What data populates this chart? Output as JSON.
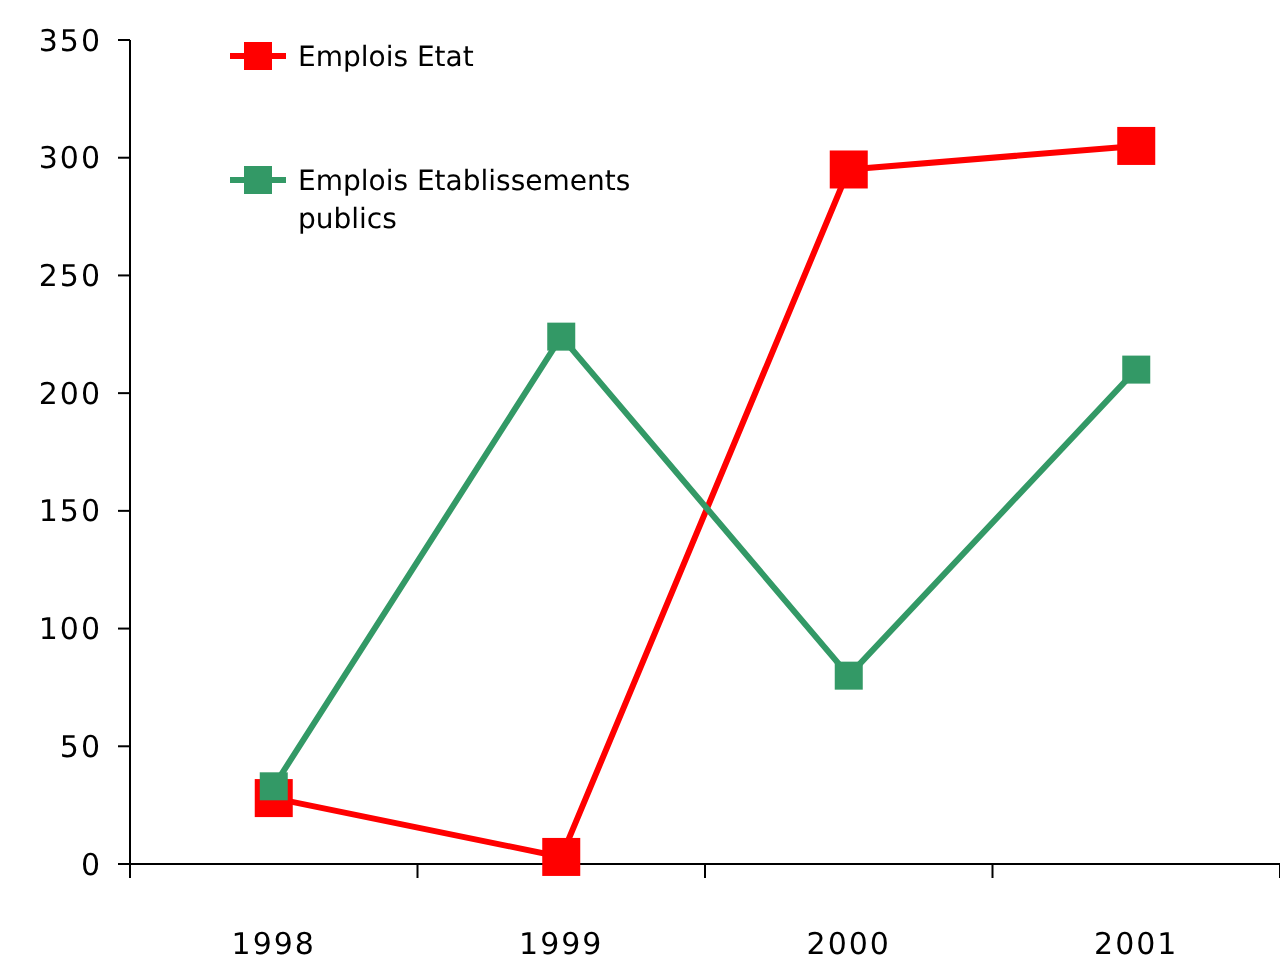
{
  "chart_data": {
    "type": "line",
    "categories": [
      "1998",
      "1999",
      "2000",
      "2001"
    ],
    "series": [
      {
        "name": "Emplois Etat",
        "color": "#ff0000",
        "values": [
          28,
          3,
          295,
          305
        ]
      },
      {
        "name": "Emplois Etablissements publics",
        "color": "#339966",
        "values": [
          33,
          224,
          80,
          210
        ]
      }
    ],
    "ylim": [
      0,
      350
    ],
    "yticks": [
      0,
      50,
      100,
      150,
      200,
      250,
      300,
      350
    ],
    "grid": false,
    "legend": "top left",
    "marker": "square",
    "line_style": "solid"
  }
}
